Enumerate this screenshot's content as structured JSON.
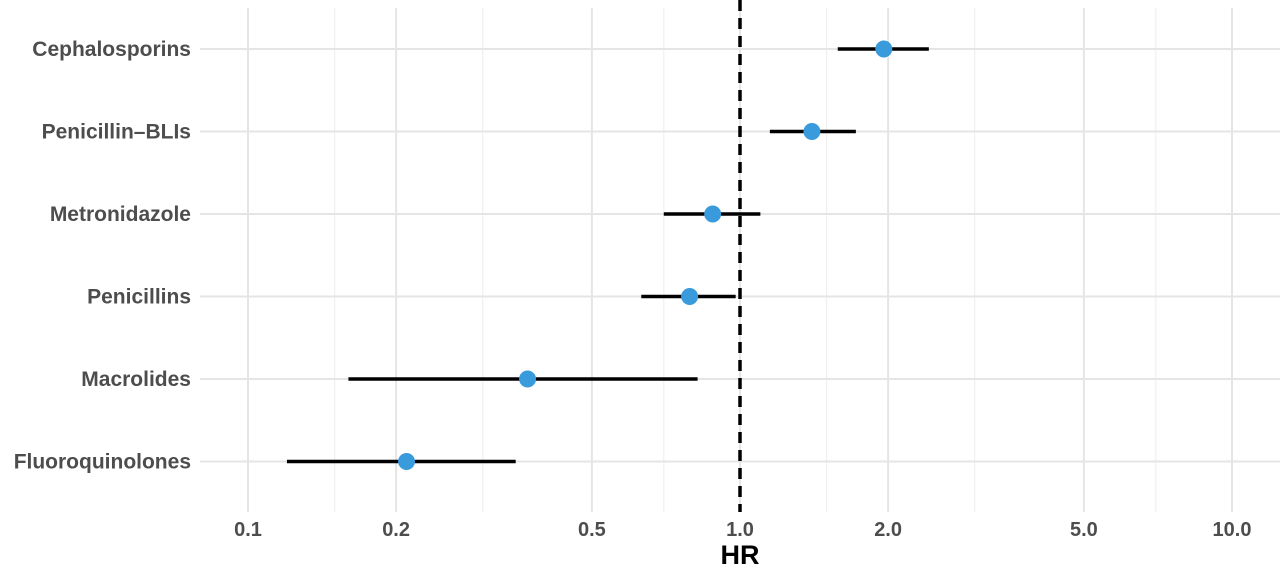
{
  "chart_data": {
    "type": "forest",
    "xlabel": "HR",
    "ylabel": "",
    "x_scale": "log",
    "xlim": [
      0.1,
      10.0
    ],
    "x_ticks": [
      0.1,
      0.2,
      0.5,
      1.0,
      2.0,
      5.0,
      10.0
    ],
    "x_tick_labels": [
      "0.1",
      "0.2",
      "0.5",
      "1.0",
      "2.0",
      "5.0",
      "10.0"
    ],
    "x_minor_ticks": [
      0.15,
      0.3,
      0.7,
      1.5,
      3.0,
      7.0
    ],
    "reference_line": 1.0,
    "point_color": "#3a9bdc",
    "grid": true,
    "categories": [
      "Cephalosporins",
      "Penicillin–BLIs",
      "Metronidazole",
      "Penicillins",
      "Macrolides",
      "Fluoroquinolones"
    ],
    "estimates": [
      {
        "label": "Cephalosporins",
        "hr": 1.96,
        "lower": 1.58,
        "upper": 2.42
      },
      {
        "label": "Penicillin–BLIs",
        "hr": 1.4,
        "lower": 1.15,
        "upper": 1.72
      },
      {
        "label": "Metronidazole",
        "hr": 0.88,
        "lower": 0.7,
        "upper": 1.1
      },
      {
        "label": "Penicillins",
        "hr": 0.79,
        "lower": 0.63,
        "upper": 0.98
      },
      {
        "label": "Macrolides",
        "hr": 0.37,
        "lower": 0.16,
        "upper": 0.82
      },
      {
        "label": "Fluoroquinolones",
        "hr": 0.21,
        "lower": 0.12,
        "upper": 0.35
      }
    ]
  }
}
